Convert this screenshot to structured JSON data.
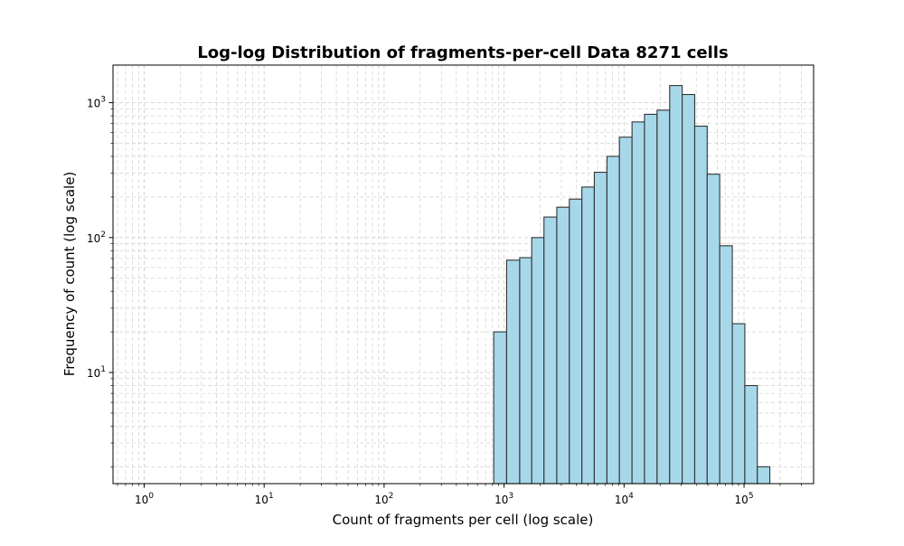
{
  "chart_data": {
    "type": "bar",
    "title": "Log-log Distribution of fragments-per-cell Data 8271 cells",
    "xlabel": "Count of fragments per cell (log scale)",
    "ylabel": "Frequency of count (log scale)",
    "xscale": "log",
    "yscale": "log",
    "xlim": [
      0.55,
      380000
    ],
    "ylim": [
      1.5,
      1900
    ],
    "grid": true,
    "colors": {
      "bar_fill": "#a6d8ea",
      "bar_edge": "#333333",
      "grid": "#d0d0d0"
    },
    "x_ticks": [
      {
        "base": "10",
        "exp": "0",
        "value": 1
      },
      {
        "base": "10",
        "exp": "1",
        "value": 10
      },
      {
        "base": "10",
        "exp": "2",
        "value": 100
      },
      {
        "base": "10",
        "exp": "3",
        "value": 1000
      },
      {
        "base": "10",
        "exp": "4",
        "value": 10000
      },
      {
        "base": "10",
        "exp": "5",
        "value": 100000
      }
    ],
    "y_ticks": [
      {
        "base": "10",
        "exp": "1",
        "value": 10
      },
      {
        "base": "10",
        "exp": "2",
        "value": 100
      },
      {
        "base": "10",
        "exp": "3",
        "value": 1000
      }
    ],
    "bins": [
      {
        "x0": 820,
        "x1": 1050,
        "count": 20
      },
      {
        "x0": 1050,
        "x1": 1350,
        "count": 68
      },
      {
        "x0": 1350,
        "x1": 1700,
        "count": 71
      },
      {
        "x0": 1700,
        "x1": 2150,
        "count": 100
      },
      {
        "x0": 2150,
        "x1": 2750,
        "count": 142
      },
      {
        "x0": 2750,
        "x1": 3500,
        "count": 168
      },
      {
        "x0": 3500,
        "x1": 4450,
        "count": 193
      },
      {
        "x0": 4450,
        "x1": 5650,
        "count": 237
      },
      {
        "x0": 5650,
        "x1": 7200,
        "count": 305
      },
      {
        "x0": 7200,
        "x1": 9150,
        "count": 400
      },
      {
        "x0": 9150,
        "x1": 11650,
        "count": 555
      },
      {
        "x0": 11650,
        "x1": 14800,
        "count": 720
      },
      {
        "x0": 14800,
        "x1": 18850,
        "count": 820
      },
      {
        "x0": 18850,
        "x1": 24000,
        "count": 880
      },
      {
        "x0": 24000,
        "x1": 30500,
        "count": 1340
      },
      {
        "x0": 30500,
        "x1": 38800,
        "count": 1150
      },
      {
        "x0": 38800,
        "x1": 49300,
        "count": 670
      },
      {
        "x0": 49300,
        "x1": 62700,
        "count": 295
      },
      {
        "x0": 62700,
        "x1": 79800,
        "count": 87
      },
      {
        "x0": 79800,
        "x1": 101500,
        "count": 23
      },
      {
        "x0": 101500,
        "x1": 129000,
        "count": 8
      },
      {
        "x0": 129000,
        "x1": 164000,
        "count": 2
      }
    ]
  }
}
